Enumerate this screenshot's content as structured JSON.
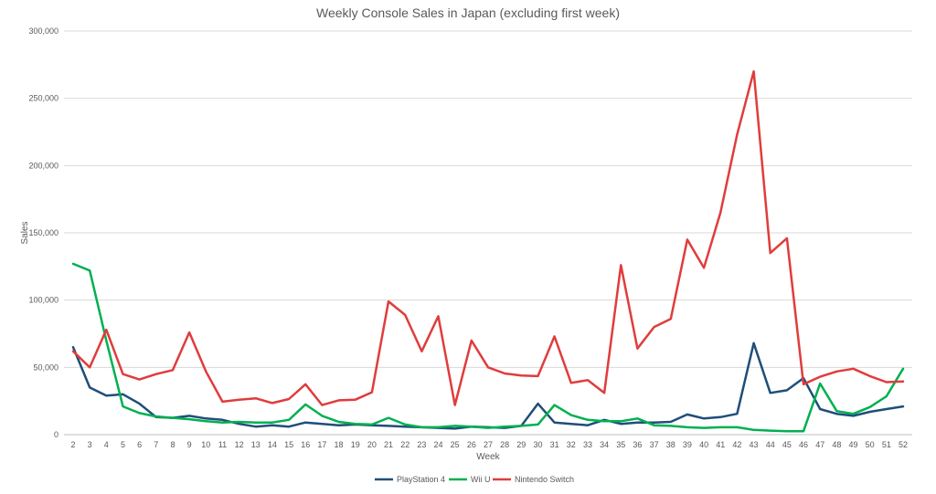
{
  "chart_data": {
    "type": "line",
    "title": "Weekly Console Sales in Japan (excluding first week)",
    "xlabel": "Week",
    "ylabel": "Sales",
    "ylim": [
      0,
      300000
    ],
    "yticks": [
      "0",
      "50,000",
      "100,000",
      "150,000",
      "200,000",
      "250,000",
      "300,000"
    ],
    "grid": true,
    "legend_position": "bottom",
    "categories": [
      "2",
      "3",
      "4",
      "5",
      "6",
      "7",
      "8",
      "9",
      "10",
      "11",
      "12",
      "13",
      "14",
      "15",
      "16",
      "17",
      "18",
      "19",
      "20",
      "21",
      "22",
      "23",
      "24",
      "25",
      "26",
      "27",
      "28",
      "29",
      "30",
      "31",
      "32",
      "33",
      "34",
      "35",
      "36",
      "37",
      "38",
      "39",
      "40",
      "41",
      "42",
      "43",
      "44",
      "45",
      "46",
      "47",
      "48",
      "49",
      "50",
      "51",
      "52"
    ],
    "series": [
      {
        "name": "PlayStation 4",
        "color": "#1f4e79",
        "values": [
          65000,
          35000,
          29000,
          30000,
          23000,
          13000,
          12500,
          14000,
          12000,
          11000,
          8000,
          6000,
          7000,
          6000,
          9000,
          8000,
          7000,
          7500,
          7000,
          6500,
          6000,
          5500,
          5000,
          4500,
          6000,
          5500,
          5000,
          6500,
          23000,
          9000,
          8000,
          7000,
          11000,
          8000,
          9000,
          9000,
          9500,
          15000,
          12000,
          13000,
          15500,
          68000,
          31000,
          33000,
          42000,
          19000,
          15500,
          14000,
          17000,
          19000,
          21000
        ]
      },
      {
        "name": "Wii U",
        "color": "#00b050",
        "values": [
          127000,
          122000,
          70000,
          21000,
          16000,
          13500,
          12500,
          11500,
          10000,
          9000,
          9500,
          9000,
          9000,
          11000,
          22500,
          14000,
          9500,
          8000,
          7500,
          12500,
          7500,
          5500,
          5500,
          6500,
          6000,
          5000,
          6000,
          6500,
          7500,
          22000,
          14500,
          11000,
          10000,
          10000,
          12000,
          7000,
          6500,
          5500,
          5000,
          5500,
          5500,
          3500,
          3000,
          2500,
          2500,
          38000,
          17500,
          15500,
          20500,
          28500,
          49000
        ]
      },
      {
        "name": "Nintendo Switch",
        "color": "#e03c3c",
        "values": [
          62000,
          50000,
          78000,
          45000,
          41000,
          45000,
          48000,
          76000,
          47000,
          24500,
          26000,
          27000,
          23500,
          26500,
          37500,
          22000,
          25500,
          26000,
          31500,
          99000,
          89000,
          62000,
          88000,
          22000,
          70000,
          50000,
          45500,
          44000,
          43500,
          73000,
          38500,
          40500,
          31000,
          126000,
          64000,
          80000,
          86000,
          145000,
          124000,
          165000,
          223000,
          270000,
          135000,
          146000,
          37500,
          43000,
          47000,
          49000,
          43500,
          39000,
          39500
        ]
      }
    ]
  }
}
